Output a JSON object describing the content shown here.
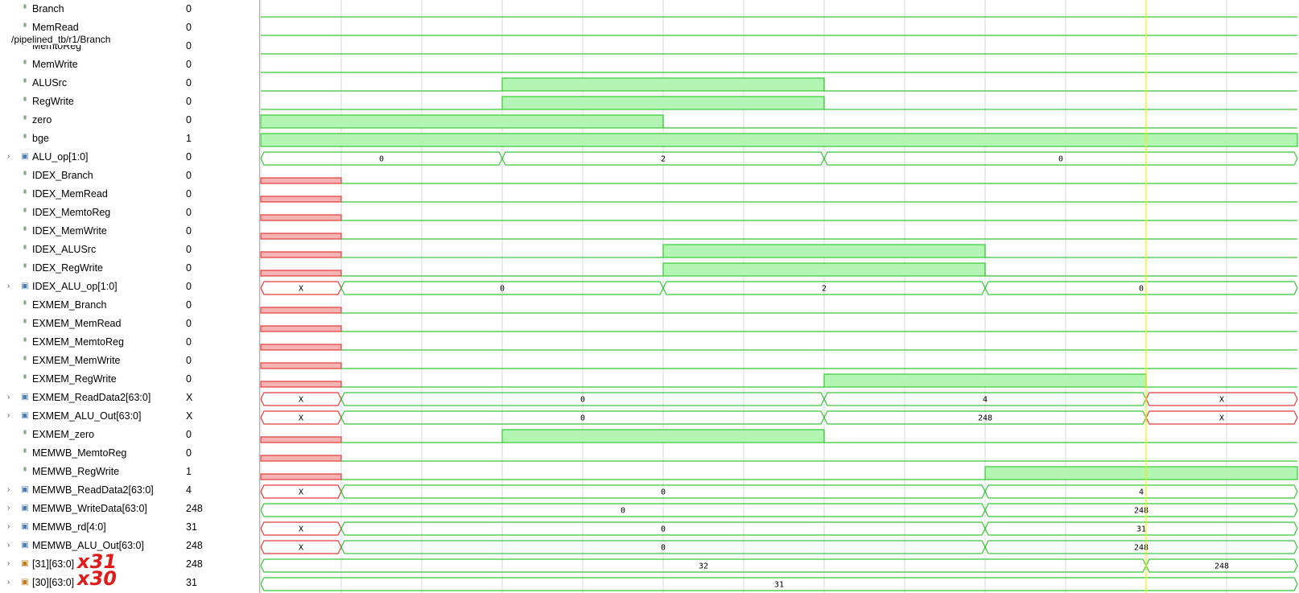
{
  "tooltip": "/pipelined_tb/r1/Branch",
  "annotations": {
    "x31": "x31",
    "x30": "x30"
  },
  "colors": {
    "wave": "#37c837",
    "wave_fill": "#b3f5b3",
    "unknown": "#e23b3b",
    "unknown_fill": "#f5b3b3",
    "cursor": "#f0f000",
    "grid": "#d9d9d9"
  },
  "cursor_time": 11,
  "time_range": [
    0,
    13
  ],
  "signals": [
    {
      "name": "Branch",
      "value": "0",
      "kind": "bit",
      "wave": [
        [
          0,
          "0"
        ]
      ]
    },
    {
      "name": "MemRead",
      "value": "0",
      "kind": "bit",
      "wave": [
        [
          0,
          "0"
        ]
      ]
    },
    {
      "name": "MemtoReg",
      "value": "0",
      "kind": "bit",
      "wave": [
        [
          0,
          "0"
        ]
      ]
    },
    {
      "name": "MemWrite",
      "value": "0",
      "kind": "bit",
      "wave": [
        [
          0,
          "0"
        ]
      ]
    },
    {
      "name": "ALUSrc",
      "value": "0",
      "kind": "bit",
      "wave": [
        [
          0,
          "0"
        ],
        [
          3,
          "1"
        ],
        [
          7,
          "0"
        ]
      ]
    },
    {
      "name": "RegWrite",
      "value": "0",
      "kind": "bit",
      "wave": [
        [
          0,
          "0"
        ],
        [
          3,
          "1"
        ],
        [
          7,
          "0"
        ]
      ]
    },
    {
      "name": "zero",
      "value": "0",
      "kind": "bit",
      "wave": [
        [
          0,
          "1"
        ],
        [
          5,
          "0"
        ]
      ]
    },
    {
      "name": "bge",
      "value": "1",
      "kind": "bit",
      "wave": [
        [
          0,
          "1"
        ]
      ]
    },
    {
      "name": "ALU_op[1:0]",
      "value": "0",
      "kind": "bus",
      "wave": [
        [
          0,
          "0"
        ],
        [
          3,
          "2"
        ],
        [
          7,
          "0"
        ]
      ]
    },
    {
      "name": "IDEX_Branch",
      "value": "0",
      "kind": "bit",
      "wave": [
        [
          0,
          "X"
        ],
        [
          1,
          "0"
        ]
      ]
    },
    {
      "name": "IDEX_MemRead",
      "value": "0",
      "kind": "bit",
      "wave": [
        [
          0,
          "X"
        ],
        [
          1,
          "0"
        ]
      ]
    },
    {
      "name": "IDEX_MemtoReg",
      "value": "0",
      "kind": "bit",
      "wave": [
        [
          0,
          "X"
        ],
        [
          1,
          "0"
        ]
      ]
    },
    {
      "name": "IDEX_MemWrite",
      "value": "0",
      "kind": "bit",
      "wave": [
        [
          0,
          "X"
        ],
        [
          1,
          "0"
        ]
      ]
    },
    {
      "name": "IDEX_ALUSrc",
      "value": "0",
      "kind": "bit",
      "wave": [
        [
          0,
          "X"
        ],
        [
          1,
          "0"
        ],
        [
          5,
          "1"
        ],
        [
          9,
          "0"
        ]
      ]
    },
    {
      "name": "IDEX_RegWrite",
      "value": "0",
      "kind": "bit",
      "wave": [
        [
          0,
          "X"
        ],
        [
          1,
          "0"
        ],
        [
          5,
          "1"
        ],
        [
          9,
          "0"
        ]
      ]
    },
    {
      "name": "IDEX_ALU_op[1:0]",
      "value": "0",
      "kind": "bus",
      "wave": [
        [
          0,
          "X"
        ],
        [
          1,
          "0"
        ],
        [
          5,
          "2"
        ],
        [
          9,
          "0"
        ]
      ]
    },
    {
      "name": "EXMEM_Branch",
      "value": "0",
      "kind": "bit",
      "wave": [
        [
          0,
          "X"
        ],
        [
          1,
          "0"
        ]
      ]
    },
    {
      "name": "EXMEM_MemRead",
      "value": "0",
      "kind": "bit",
      "wave": [
        [
          0,
          "X"
        ],
        [
          1,
          "0"
        ]
      ]
    },
    {
      "name": "EXMEM_MemtoReg",
      "value": "0",
      "kind": "bit",
      "wave": [
        [
          0,
          "X"
        ],
        [
          1,
          "0"
        ]
      ]
    },
    {
      "name": "EXMEM_MemWrite",
      "value": "0",
      "kind": "bit",
      "wave": [
        [
          0,
          "X"
        ],
        [
          1,
          "0"
        ]
      ]
    },
    {
      "name": "EXMEM_RegWrite",
      "value": "0",
      "kind": "bit",
      "wave": [
        [
          0,
          "X"
        ],
        [
          1,
          "0"
        ],
        [
          7,
          "1"
        ],
        [
          11,
          "0"
        ]
      ]
    },
    {
      "name": "EXMEM_ReadData2[63:0]",
      "value": "X",
      "kind": "bus",
      "wave": [
        [
          0,
          "X"
        ],
        [
          1,
          "0"
        ],
        [
          7,
          "4"
        ],
        [
          11,
          "X"
        ]
      ]
    },
    {
      "name": "EXMEM_ALU_Out[63:0]",
      "value": "X",
      "kind": "bus",
      "wave": [
        [
          0,
          "X"
        ],
        [
          1,
          "0"
        ],
        [
          7,
          "248"
        ],
        [
          11,
          "X"
        ]
      ]
    },
    {
      "name": "EXMEM_zero",
      "value": "0",
      "kind": "bit",
      "wave": [
        [
          0,
          "X"
        ],
        [
          1,
          "0"
        ],
        [
          3,
          "1"
        ],
        [
          7,
          "0"
        ]
      ]
    },
    {
      "name": "MEMWB_MemtoReg",
      "value": "0",
      "kind": "bit",
      "wave": [
        [
          0,
          "X"
        ],
        [
          1,
          "0"
        ]
      ]
    },
    {
      "name": "MEMWB_RegWrite",
      "value": "1",
      "kind": "bit",
      "wave": [
        [
          0,
          "X"
        ],
        [
          1,
          "0"
        ],
        [
          9,
          "1"
        ]
      ]
    },
    {
      "name": "MEMWB_ReadData2[63:0]",
      "value": "4",
      "kind": "bus",
      "wave": [
        [
          0,
          "X"
        ],
        [
          1,
          "0"
        ],
        [
          9,
          "4"
        ]
      ]
    },
    {
      "name": "MEMWB_WriteData[63:0]",
      "value": "248",
      "kind": "bus",
      "wave": [
        [
          0,
          "0"
        ],
        [
          9,
          "248"
        ]
      ]
    },
    {
      "name": "MEMWB_rd[4:0]",
      "value": "31",
      "kind": "bus",
      "wave": [
        [
          0,
          "X"
        ],
        [
          1,
          "0"
        ],
        [
          9,
          "31"
        ]
      ]
    },
    {
      "name": "MEMWB_ALU_Out[63:0]",
      "value": "248",
      "kind": "bus",
      "wave": [
        [
          0,
          "X"
        ],
        [
          1,
          "0"
        ],
        [
          9,
          "248"
        ]
      ]
    },
    {
      "name": "[31][63:0]",
      "value": "248",
      "kind": "reg",
      "wave": [
        [
          0,
          "32"
        ],
        [
          11,
          "248"
        ]
      ]
    },
    {
      "name": "[30][63:0]",
      "value": "31",
      "kind": "reg",
      "wave": [
        [
          0,
          "31"
        ]
      ]
    }
  ]
}
